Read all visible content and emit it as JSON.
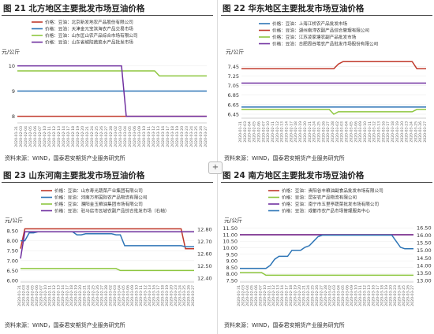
{
  "add_button": "+",
  "chart_data": [
    {
      "type": "line",
      "title": "图 21  北方地区主要批发市场豆油价格",
      "ylabel": "元/公斤",
      "source": "资料来源：WIND，国泰君安期货产业服务研究所",
      "x": [
        "2020-01-31",
        "2020-02-03",
        "2020-02-04",
        "2020-02-05",
        "2020-02-06",
        "2020-02-07",
        "2020-02-10",
        "2020-02-11",
        "2020-02-12",
        "2020-02-13",
        "2020-02-14",
        "2020-02-17",
        "2020-02-18",
        "2020-02-19",
        "2020-02-20",
        "2020-02-21",
        "2020-02-24",
        "2020-02-25",
        "2020-02-26",
        "2020-02-27",
        "2020-02-28",
        "2020-03-02",
        "2020-03-03",
        "2020-03-04",
        "2020-03-05",
        "2020-03-06",
        "2020-03-09",
        "2020-03-10",
        "2020-03-11",
        "2020-03-12",
        "2020-03-13",
        "2020-03-16",
        "2020-03-17",
        "2020-03-18",
        "2020-03-19",
        "2020-03-20",
        "2020-03-23",
        "2020-03-24",
        "2020-03-25",
        "2020-03-26",
        "2020-03-27"
      ],
      "yticks": [
        8,
        9,
        10
      ],
      "ylim": [
        7.8,
        10.3
      ],
      "series": [
        {
          "name": "价格：豆油：北京新发地农产品股份有限公司",
          "color": "#c0392b",
          "values": [
            8,
            8,
            8,
            8,
            8,
            8,
            8,
            8,
            8,
            8,
            8,
            8,
            8,
            8,
            8,
            8,
            8,
            8,
            8,
            8,
            8,
            8,
            8,
            8,
            8,
            8,
            8,
            8,
            8,
            8,
            8,
            8,
            8,
            8,
            8,
            8,
            8,
            8,
            8,
            8,
            8
          ]
        },
        {
          "name": "价格：豆油：天津金元宝滨海农产品交易市场",
          "color": "#2e75b6",
          "values": [
            9,
            9,
            9,
            9,
            9,
            9,
            9,
            9,
            9,
            9,
            9,
            9,
            9,
            9,
            9,
            9,
            9,
            9,
            9,
            9,
            9,
            9,
            9,
            9,
            9,
            9,
            9,
            9,
            9,
            9,
            9,
            9,
            9,
            9,
            9,
            9,
            9,
            9,
            9,
            9,
            9
          ]
        },
        {
          "name": "价格：豆油：山东匡山农产品综合市场有限公司",
          "color": "#8dc63f",
          "values": [
            9.8,
            9.8,
            9.8,
            9.8,
            9.8,
            9.8,
            9.8,
            9.8,
            9.8,
            9.8,
            9.8,
            9.8,
            9.8,
            9.8,
            9.8,
            9.8,
            9.8,
            9.8,
            9.8,
            9.8,
            9.8,
            9.8,
            9.8,
            9.8,
            9.8,
            9.8,
            9.8,
            9.8,
            9.8,
            9.8,
            9.6,
            9.6,
            9.6,
            9.6,
            9.6,
            9.6,
            9.6,
            9.6,
            9.6,
            9.6,
            9.6
          ]
        },
        {
          "name": "价格：豆油：山东省城阳蔬菜水产品批发市场",
          "color": "#7030a0",
          "values": [
            10,
            10,
            10,
            10,
            10,
            10,
            10,
            10,
            10,
            10,
            10,
            10,
            10,
            10,
            10,
            10,
            10,
            10,
            10,
            10,
            10,
            10,
            10,
            8,
            8,
            8,
            8,
            8,
            8,
            8,
            8,
            8,
            8,
            8,
            8,
            8,
            8,
            8,
            8,
            8,
            8
          ]
        }
      ]
    },
    {
      "type": "line",
      "title": "图 22  华东地区主要批发市场豆油价格",
      "ylabel": "元/公斤",
      "source": "资料来源：WIND，国泰君安期货产业服务研究所",
      "x": [
        "2020-01-31",
        "2020-02-03",
        "2020-02-04",
        "2020-02-05",
        "2020-02-06",
        "2020-02-07",
        "2020-02-10",
        "2020-02-11",
        "2020-02-12",
        "2020-02-13",
        "2020-02-14",
        "2020-02-17",
        "2020-02-18",
        "2020-02-19",
        "2020-02-20",
        "2020-02-21",
        "2020-02-24",
        "2020-02-25",
        "2020-02-26",
        "2020-02-27",
        "2020-02-28",
        "2020-03-02",
        "2020-03-03",
        "2020-03-04",
        "2020-03-05",
        "2020-03-06",
        "2020-03-09",
        "2020-03-10",
        "2020-03-11",
        "2020-03-12",
        "2020-03-13",
        "2020-03-16",
        "2020-03-17",
        "2020-03-18",
        "2020-03-19",
        "2020-03-20",
        "2020-03-23",
        "2020-03-24",
        "2020-03-25",
        "2020-03-26",
        "2020-03-27"
      ],
      "yticks": [
        6.45,
        6.65,
        6.85,
        7.05,
        7.25,
        7.45
      ],
      "ylim": [
        6.4,
        7.62
      ],
      "series": [
        {
          "name": "价格：豆油：上海江桥农产品批发市场",
          "color": "#2e75b6",
          "values": [
            6.6,
            6.6,
            6.6,
            6.6,
            6.6,
            6.6,
            6.6,
            6.6,
            6.6,
            6.6,
            6.6,
            6.6,
            6.6,
            6.6,
            6.6,
            6.6,
            6.6,
            6.6,
            6.6,
            6.6,
            6.6,
            6.6,
            6.6,
            6.6,
            6.6,
            6.6,
            6.6,
            6.6,
            6.6,
            6.6,
            6.6,
            6.6,
            6.6,
            6.6,
            6.6,
            6.6,
            6.6,
            6.6,
            6.6,
            6.6,
            6.6
          ]
        },
        {
          "name": "价格：豆油：湖州南浔农副产品综合管理有限公司",
          "color": "#c0392b",
          "values": [
            7.4,
            7.4,
            7.4,
            7.4,
            7.4,
            7.4,
            7.4,
            7.4,
            7.4,
            7.4,
            7.4,
            7.4,
            7.4,
            7.4,
            7.4,
            7.4,
            7.4,
            7.4,
            7.4,
            7.4,
            7.4,
            7.5,
            7.55,
            7.55,
            7.55,
            7.55,
            7.55,
            7.55,
            7.55,
            7.55,
            7.55,
            7.55,
            7.55,
            7.55,
            7.55,
            7.55,
            7.55,
            7.55,
            7.4,
            7.4,
            7.4
          ]
        },
        {
          "name": "价格：豆油：江苏凌家塘农副产品批发市场",
          "color": "#8dc63f",
          "values": [
            6.55,
            6.55,
            6.55,
            6.55,
            6.55,
            6.55,
            6.55,
            6.55,
            6.55,
            6.55,
            6.55,
            6.55,
            6.55,
            6.55,
            6.55,
            6.55,
            6.55,
            6.55,
            6.55,
            6.55,
            6.45,
            6.5,
            6.5,
            6.5,
            6.5,
            6.5,
            6.5,
            6.5,
            6.5,
            6.5,
            6.5,
            6.5,
            6.5,
            6.5,
            6.5,
            6.5,
            6.5,
            6.5,
            6.55,
            6.55,
            6.55
          ]
        },
        {
          "name": "价格：豆油：合肥周谷堆农产品批发市场股份有限公司",
          "color": "#7030a0",
          "values": [
            7.1,
            7.1,
            7.1,
            7.1,
            7.1,
            7.1,
            7.1,
            7.1,
            7.1,
            7.1,
            7.1,
            7.1,
            7.1,
            7.1,
            7.1,
            7.1,
            7.1,
            7.1,
            7.1,
            7.1,
            7.1,
            7.1,
            7.1,
            7.1,
            7.1,
            7.1,
            7.1,
            7.1,
            7.1,
            7.1,
            7.1,
            7.1,
            7.1,
            7.1,
            7.1,
            7.1,
            7.1,
            7.1,
            7.1,
            7.1,
            7.1
          ]
        }
      ]
    },
    {
      "type": "line",
      "title": "图 23  山东河南主要批发市场豆油价格",
      "ylabel": "元/公斤",
      "source": "资料来源：WIND，国泰君安期货产业服务研究所",
      "x": [
        "2020-01-31",
        "2020-02-03",
        "2020-02-04",
        "2020-02-05",
        "2020-02-06",
        "2020-02-07",
        "2020-02-10",
        "2020-02-11",
        "2020-02-12",
        "2020-02-13",
        "2020-02-14",
        "2020-02-17",
        "2020-02-18",
        "2020-02-19",
        "2020-02-20",
        "2020-02-21",
        "2020-02-24",
        "2020-02-25",
        "2020-02-26",
        "2020-02-27",
        "2020-02-28",
        "2020-03-02",
        "2020-03-03",
        "2020-03-04",
        "2020-03-05",
        "2020-03-06",
        "2020-03-09",
        "2020-03-10",
        "2020-03-11",
        "2020-03-12",
        "2020-03-13",
        "2020-03-16",
        "2020-03-17",
        "2020-03-18",
        "2020-03-19",
        "2020-03-20",
        "2020-03-23",
        "2020-03-24",
        "2020-03-25",
        "2020-03-26",
        "2020-03-27"
      ],
      "yticks": [
        6.0,
        6.5,
        7.0,
        7.5,
        8.0,
        8.5
      ],
      "yticks_right": [
        12.4,
        12.5,
        12.6,
        12.7,
        12.8
      ],
      "ylim": [
        6.0,
        8.7
      ],
      "ylim_right": [
        12.38,
        12.82
      ],
      "series": [
        {
          "name": "价格：豆油：山东寿光蔬菜产业集团有限公司",
          "color": "#c0392b",
          "values": [
            7.6,
            8.6,
            8.6,
            8.6,
            8.6,
            8.6,
            8.6,
            8.6,
            8.6,
            8.6,
            8.6,
            8.6,
            8.6,
            8.6,
            8.6,
            8.6,
            8.6,
            8.6,
            8.6,
            8.6,
            8.6,
            8.6,
            8.6,
            8.6,
            8.6,
            8.6,
            8.6,
            8.6,
            8.6,
            8.6,
            8.6,
            8.6,
            8.6,
            8.6,
            8.6,
            8.6,
            8.6,
            8.6,
            7.6,
            7.6,
            7.6
          ]
        },
        {
          "name": "价格：豆油：河南万邦国际农产品物流有限公司",
          "color": "#2e75b6",
          "values": [
            8.0,
            8.0,
            8.4,
            8.4,
            8.45,
            8.45,
            8.45,
            8.45,
            8.45,
            8.45,
            8.45,
            8.45,
            8.45,
            8.3,
            8.3,
            8.35,
            8.35,
            8.35,
            8.35,
            8.35,
            8.35,
            8.35,
            8.3,
            8.3,
            7.75,
            7.75,
            7.75,
            7.75,
            7.75,
            7.75,
            7.75,
            7.75,
            7.75,
            7.75,
            7.75,
            7.75,
            7.75,
            7.75,
            7.7,
            7.7,
            7.7
          ]
        },
        {
          "name": "价格：豆油：濮阳金玉粮油集团市场有限公司",
          "color": "#8dc63f",
          "values": [
            6.6,
            6.6,
            6.6,
            6.6,
            6.6,
            6.6,
            6.6,
            6.6,
            6.6,
            6.6,
            6.6,
            6.6,
            6.6,
            6.6,
            6.6,
            6.6,
            6.6,
            6.6,
            6.6,
            6.6,
            6.6,
            6.6,
            6.6,
            6.5,
            6.5,
            6.5,
            6.5,
            6.5,
            6.5,
            6.5,
            6.5,
            6.5,
            6.5,
            6.5,
            6.5,
            6.5,
            6.5,
            6.5,
            6.5,
            6.5,
            6.5
          ]
        },
        {
          "name": "价格：豆油：驻马店市瓦坡农副产品综合批发市场（右轴）",
          "color": "#7030a0",
          "axis": "right",
          "values": [
            12.56,
            12.78,
            12.78,
            12.78,
            12.78,
            12.78,
            12.78,
            12.78,
            12.78,
            12.78,
            12.78,
            12.78,
            12.78,
            12.78,
            12.78,
            12.78,
            12.78,
            12.78,
            12.78,
            12.78,
            12.78,
            12.78,
            12.78,
            12.78,
            12.78,
            12.78,
            12.78,
            12.78,
            12.78,
            12.78,
            12.78,
            12.78,
            12.78,
            12.78,
            12.78,
            12.78,
            12.78,
            12.78,
            12.78,
            12.78,
            12.78
          ]
        }
      ]
    },
    {
      "type": "line",
      "title": "图 24  南方地区主要批发市场豆油价格",
      "ylabel": "元/公斤",
      "source": "资料来源：WIND，国泰君安期货产业服务研究所",
      "x": [
        "2020-01-31",
        "2020-02-03",
        "2020-02-04",
        "2020-02-05",
        "2020-02-06",
        "2020-02-07",
        "2020-02-10",
        "2020-02-11",
        "2020-02-12",
        "2020-02-13",
        "2020-02-14",
        "2020-02-17",
        "2020-02-18",
        "2020-02-19",
        "2020-02-20",
        "2020-02-21",
        "2020-02-24",
        "2020-02-25",
        "2020-02-26",
        "2020-02-27",
        "2020-02-28",
        "2020-03-02",
        "2020-03-03",
        "2020-03-04",
        "2020-03-05",
        "2020-03-06",
        "2020-03-09",
        "2020-03-10",
        "2020-03-11",
        "2020-03-12",
        "2020-03-13",
        "2020-03-16",
        "2020-03-17",
        "2020-03-18",
        "2020-03-19",
        "2020-03-20",
        "2020-03-23",
        "2020-03-24",
        "2020-03-25",
        "2020-03-26",
        "2020-03-27"
      ],
      "yticks": [
        7.5,
        8.0,
        8.5,
        9.0,
        9.5,
        10.0,
        10.5,
        11.0,
        11.5
      ],
      "yticks_right": [
        13.0,
        13.5,
        14.0,
        14.5,
        15.0,
        15.5,
        16.0,
        16.5
      ],
      "ylim": [
        7.5,
        11.6
      ],
      "ylim_right": [
        13.0,
        16.55
      ],
      "series": [
        {
          "name": "价格：豆油：贵阳谷丰粮油副食品批发市场有限公司",
          "color": "#c0392b",
          "values": [
            11,
            11,
            11,
            11,
            11,
            11,
            11,
            11,
            11,
            11,
            11,
            11,
            11,
            11,
            11,
            11,
            11,
            11,
            11,
            11,
            11,
            11,
            11,
            11,
            11,
            11,
            11,
            11,
            11,
            11,
            11,
            11,
            11,
            11,
            11,
            11,
            11,
            11,
            11,
            11,
            11
          ]
        },
        {
          "name": "价格：豆油：昆安农产品物流有限公司",
          "color": "#8dc63f",
          "values": [
            8.1,
            8.1,
            8.1,
            8.1,
            8.1,
            8.1,
            7.9,
            7.9,
            7.9,
            7.9,
            7.9,
            7.9,
            7.9,
            7.9,
            7.9,
            7.9,
            7.9,
            7.9,
            7.9,
            7.9,
            7.9,
            7.9,
            7.9,
            7.9,
            7.9,
            7.9,
            7.9,
            7.9,
            7.9,
            7.9,
            7.9,
            7.9,
            7.9,
            7.9,
            7.9,
            7.9,
            7.9,
            7.9,
            7.9,
            7.9,
            7.9
          ]
        },
        {
          "name": "价格：豆油：南宁市五里亭蔬菜批发市场有限公司",
          "color": "#7030a0",
          "values": [
            11,
            11,
            11,
            11,
            11,
            11,
            11,
            11,
            11,
            11,
            11,
            11,
            11,
            11,
            11,
            11,
            11,
            11,
            11,
            11,
            11,
            11,
            11,
            11,
            11,
            11,
            11,
            11,
            11,
            11,
            11,
            11,
            11,
            11,
            11,
            11,
            11,
            11,
            11,
            11,
            11
          ]
        },
        {
          "name": "价格：豆油：成都市农产品市场管理服务中心",
          "color": "#2e75b6",
          "axis": "right",
          "values": [
            13.8,
            13.8,
            13.8,
            13.8,
            13.8,
            13.8,
            13.8,
            14.0,
            14.4,
            14.6,
            14.6,
            14.6,
            15.0,
            15.0,
            15.0,
            15.2,
            15.3,
            15.6,
            15.9,
            16.0,
            16.0,
            16.0,
            16.0,
            16.0,
            16.0,
            16.0,
            16.0,
            16.0,
            16.0,
            16.0,
            16.0,
            16.0,
            16.0,
            16.0,
            16.0,
            16.0,
            15.6,
            15.2,
            15.1,
            15.1,
            15.1
          ]
        }
      ]
    }
  ]
}
